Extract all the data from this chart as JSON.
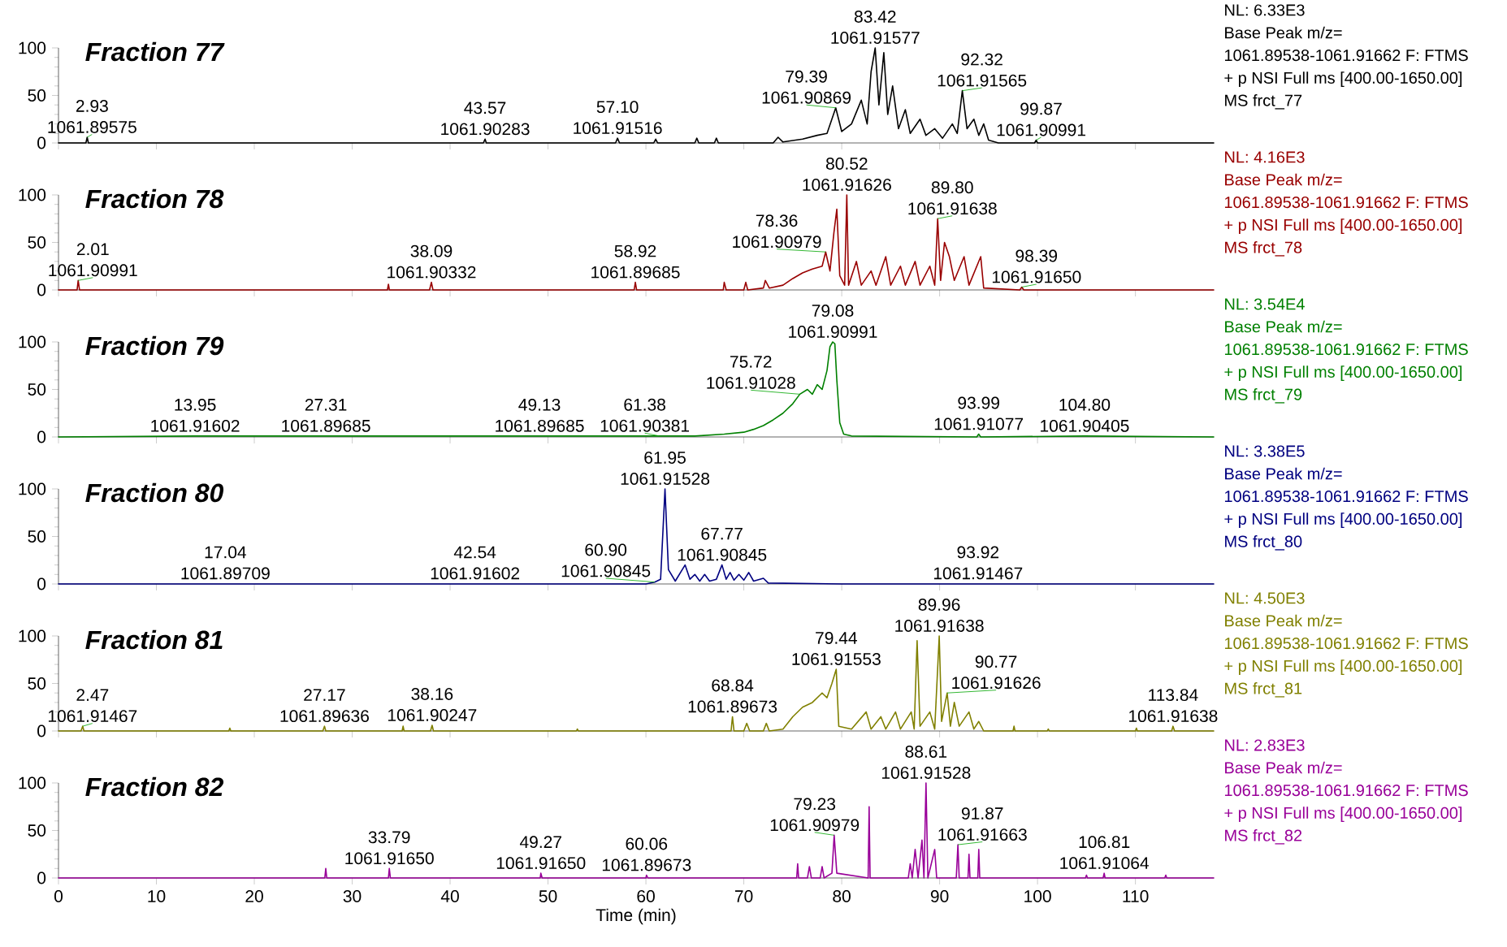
{
  "chart_data": [
    {
      "type": "line",
      "title": "Fraction 77",
      "color": "#000000",
      "xlim": [
        0,
        118
      ],
      "xticks": [
        0,
        10,
        20,
        30,
        40,
        50,
        60,
        70,
        80,
        90,
        100,
        110
      ],
      "ylim": [
        0,
        100
      ],
      "yticks": [
        0,
        50,
        100
      ],
      "tick_labels": "y",
      "x": [
        0,
        2.8,
        2.93,
        3.05,
        43.4,
        43.57,
        43.7,
        56.9,
        57.1,
        57.3,
        60.8,
        61,
        61.2,
        65,
        65.2,
        65.4,
        67,
        67.2,
        67.4,
        73,
        73.5,
        74,
        76,
        77.5,
        78.5,
        79.39,
        80,
        81,
        82,
        82.6,
        83,
        83.42,
        83.8,
        84.3,
        84.7,
        85.2,
        85.8,
        86.5,
        87,
        88,
        88.6,
        89.5,
        90.3,
        91.3,
        91.8,
        92.32,
        92.8,
        93.5,
        94,
        94.5,
        95,
        96,
        99.7,
        99.87,
        100,
        118
      ],
      "values": [
        0,
        0,
        6,
        0,
        0,
        4,
        0,
        0,
        5,
        0,
        0,
        4,
        0,
        0,
        5,
        0,
        0,
        5,
        0,
        0,
        6,
        1,
        4,
        8,
        10,
        37,
        12,
        20,
        45,
        20,
        75,
        100,
        40,
        95,
        30,
        60,
        15,
        35,
        10,
        25,
        8,
        15,
        5,
        20,
        10,
        55,
        15,
        25,
        8,
        20,
        3,
        0,
        0,
        3,
        0,
        0
      ],
      "annotations": [
        {
          "text": "2.93",
          "x": 2.93,
          "y": 6
        },
        {
          "text": "1061.89575",
          "x": 2.93,
          "y": 6
        },
        {
          "text": "43.57",
          "x": 43.57,
          "y": 4
        },
        {
          "text": "1061.90283",
          "x": 43.57,
          "y": 4
        },
        {
          "text": "57.10",
          "x": 57.1,
          "y": 5
        },
        {
          "text": "1061.91516",
          "x": 57.1,
          "y": 5
        },
        {
          "text": "79.39",
          "x": 79.39,
          "y": 37
        },
        {
          "text": "1061.90869",
          "x": 79.39,
          "y": 37
        },
        {
          "text": "83.42",
          "x": 83.42,
          "y": 100
        },
        {
          "text": "1061.91577",
          "x": 83.42,
          "y": 100
        },
        {
          "text": "92.32",
          "x": 92.32,
          "y": 55
        },
        {
          "text": "1061.91565",
          "x": 92.32,
          "y": 55
        },
        {
          "text": "99.87",
          "x": 99.87,
          "y": 3
        },
        {
          "text": "1061.90991",
          "x": 99.87,
          "y": 3
        },
        "NL: 6.33E3",
        "Base Peak m/z=",
        "1061.89538-1061.91662 F: FTMS",
        "+ p NSI Full ms [400.00-1650.00]",
        "MS frct_77"
      ]
    },
    {
      "type": "line",
      "title": "Fraction 78",
      "color": "#990000",
      "xlim": [
        0,
        118
      ],
      "xticks": [
        0,
        10,
        20,
        30,
        40,
        50,
        60,
        70,
        80,
        90,
        100,
        110
      ],
      "ylim": [
        0,
        100
      ],
      "yticks": [
        0,
        50,
        100
      ],
      "tick_labels": "y",
      "x": [
        0,
        1.9,
        2.01,
        2.15,
        33.6,
        33.7,
        33.8,
        37.9,
        38.09,
        38.25,
        58.8,
        58.92,
        59.05,
        67.9,
        68,
        68.2,
        70,
        70.2,
        70.4,
        72,
        72.2,
        72.6,
        74,
        75,
        76,
        77,
        78,
        78.36,
        78.8,
        79.2,
        79.5,
        79.8,
        80.3,
        80.52,
        80.7,
        81.5,
        82,
        83,
        83.5,
        84.5,
        85,
        86,
        86.5,
        87.5,
        88,
        89,
        89.5,
        89.8,
        90.1,
        90.5,
        91,
        91.5,
        92.5,
        93,
        94.2,
        94.5,
        98.2,
        98.39,
        98.6,
        118
      ],
      "values": [
        0,
        0,
        10,
        0,
        0,
        6,
        0,
        0,
        8,
        0,
        0,
        8,
        0,
        0,
        8,
        0,
        0,
        8,
        0,
        2,
        10,
        2,
        5,
        12,
        18,
        22,
        25,
        40,
        20,
        60,
        85,
        15,
        5,
        100,
        5,
        30,
        5,
        20,
        5,
        35,
        5,
        25,
        5,
        30,
        5,
        25,
        5,
        75,
        10,
        50,
        35,
        10,
        35,
        5,
        35,
        2,
        0,
        3,
        0,
        0
      ],
      "annotations": [
        {
          "text": "2.01",
          "x": 2.01,
          "y": 10
        },
        {
          "text": "1061.90991",
          "x": 2.01,
          "y": 10
        },
        {
          "text": "38.09",
          "x": 38.09,
          "y": 8
        },
        {
          "text": "1061.90332",
          "x": 38.09,
          "y": 8
        },
        {
          "text": "58.92",
          "x": 58.92,
          "y": 8
        },
        {
          "text": "1061.89685",
          "x": 58.92,
          "y": 8
        },
        {
          "text": "78.36",
          "x": 78.36,
          "y": 40
        },
        {
          "text": "1061.90979",
          "x": 78.36,
          "y": 40
        },
        {
          "text": "80.52",
          "x": 80.52,
          "y": 100
        },
        {
          "text": "1061.91626",
          "x": 80.52,
          "y": 100
        },
        {
          "text": "89.80",
          "x": 89.8,
          "y": 75
        },
        {
          "text": "1061.91638",
          "x": 89.8,
          "y": 75
        },
        {
          "text": "98.39",
          "x": 98.39,
          "y": 3
        },
        {
          "text": "1061.91650",
          "x": 98.39,
          "y": 3
        },
        "NL: 4.16E3",
        "Base Peak m/z=",
        "1061.89538-1061.91662 F: FTMS",
        "+ p NSI Full ms [400.00-1650.00]",
        "MS frct_78"
      ]
    },
    {
      "type": "line",
      "title": "Fraction 79",
      "color": "#008000",
      "xlim": [
        0,
        118
      ],
      "xticks": [
        0,
        10,
        20,
        30,
        40,
        50,
        60,
        70,
        80,
        90,
        100,
        110
      ],
      "ylim": [
        0,
        100
      ],
      "yticks": [
        0,
        50,
        100
      ],
      "tick_labels": "y",
      "x": [
        0,
        13.95,
        27.31,
        49.13,
        61.38,
        65,
        68,
        70,
        71,
        72,
        73,
        74,
        75,
        75.72,
        76.5,
        77,
        77.5,
        78,
        78.5,
        78.8,
        79.08,
        79.3,
        79.5,
        79.8,
        80.2,
        81,
        93.8,
        93.99,
        94.2,
        104.8,
        118
      ],
      "values": [
        0,
        1,
        1,
        1,
        1,
        1,
        3,
        5,
        8,
        12,
        18,
        25,
        35,
        45,
        50,
        45,
        55,
        50,
        70,
        95,
        100,
        98,
        60,
        15,
        3,
        1,
        0,
        3,
        0,
        1,
        0
      ],
      "annotations": [
        {
          "text": "13.95",
          "x": 13.95,
          "y": 1
        },
        {
          "text": "1061.91602",
          "x": 13.95,
          "y": 1
        },
        {
          "text": "27.31",
          "x": 27.31,
          "y": 1
        },
        {
          "text": "1061.89685",
          "x": 27.31,
          "y": 1
        },
        {
          "text": "49.13",
          "x": 49.13,
          "y": 1
        },
        {
          "text": "1061.89685",
          "x": 49.13,
          "y": 1
        },
        {
          "text": "61.38",
          "x": 61.38,
          "y": 1
        },
        {
          "text": "1061.90381",
          "x": 61.38,
          "y": 1
        },
        {
          "text": "75.72",
          "x": 75.72,
          "y": 45
        },
        {
          "text": "1061.91028",
          "x": 75.72,
          "y": 45
        },
        {
          "text": "79.08",
          "x": 79.08,
          "y": 100
        },
        {
          "text": "1061.90991",
          "x": 79.08,
          "y": 100
        },
        {
          "text": "93.99",
          "x": 93.99,
          "y": 3
        },
        {
          "text": "1061.91077",
          "x": 93.99,
          "y": 3
        },
        {
          "text": "104.80",
          "x": 104.8,
          "y": 1
        },
        {
          "text": "1061.90405",
          "x": 104.8,
          "y": 1
        },
        "NL: 3.54E4",
        "Base Peak m/z=",
        "1061.89538-1061.91662 F: FTMS",
        "+ p NSI Full ms [400.00-1650.00]",
        "MS frct_79"
      ]
    },
    {
      "type": "line",
      "title": "Fraction 80",
      "color": "#000080",
      "xlim": [
        0,
        118
      ],
      "xticks": [
        0,
        10,
        20,
        30,
        40,
        50,
        60,
        70,
        80,
        90,
        100,
        110
      ],
      "ylim": [
        0,
        100
      ],
      "yticks": [
        0,
        50,
        100
      ],
      "tick_labels": "y",
      "x": [
        0,
        17.04,
        42.54,
        60,
        60.9,
        61.5,
        61.95,
        62.3,
        63,
        64,
        64.5,
        65,
        65.5,
        66,
        66.5,
        67.2,
        67.77,
        68.2,
        68.6,
        69,
        69.5,
        70,
        70.5,
        71,
        72,
        72.5,
        80,
        93.92,
        118
      ],
      "values": [
        0,
        0,
        0,
        0,
        2,
        5,
        100,
        15,
        3,
        20,
        5,
        10,
        3,
        10,
        3,
        5,
        20,
        5,
        12,
        4,
        10,
        4,
        12,
        3,
        6,
        1,
        0,
        0,
        0
      ],
      "annotations": [
        {
          "text": "17.04",
          "x": 17.04,
          "y": 0.5
        },
        {
          "text": "1061.89709",
          "x": 17.04,
          "y": 0.5
        },
        {
          "text": "42.54",
          "x": 42.54,
          "y": 0.5
        },
        {
          "text": "1061.91602",
          "x": 42.54,
          "y": 0.5
        },
        {
          "text": "60.90",
          "x": 60.9,
          "y": 2
        },
        {
          "text": "1061.90845",
          "x": 60.9,
          "y": 2
        },
        {
          "text": "61.95",
          "x": 61.95,
          "y": 100
        },
        {
          "text": "1061.91528",
          "x": 61.95,
          "y": 100
        },
        {
          "text": "67.77",
          "x": 67.77,
          "y": 20
        },
        {
          "text": "1061.90845",
          "x": 67.77,
          "y": 20
        },
        {
          "text": "93.92",
          "x": 93.92,
          "y": 0.5
        },
        {
          "text": "1061.91467",
          "x": 93.92,
          "y": 0.5
        },
        "NL: 3.38E5",
        "Base Peak m/z=",
        "1061.89538-1061.91662 F: FTMS",
        "+ p NSI Full ms [400.00-1650.00]",
        "MS frct_80"
      ]
    },
    {
      "type": "line",
      "title": "Fraction 81",
      "color": "#808000",
      "xlim": [
        0,
        118
      ],
      "xticks": [
        0,
        10,
        20,
        30,
        40,
        50,
        60,
        70,
        80,
        90,
        100,
        110
      ],
      "ylim": [
        0,
        100
      ],
      "yticks": [
        0,
        50,
        100
      ],
      "tick_labels": "y",
      "x": [
        0,
        2.3,
        2.47,
        2.6,
        17.4,
        17.5,
        17.6,
        27,
        27.17,
        27.3,
        35.1,
        35.2,
        35.3,
        38,
        38.16,
        38.3,
        52.9,
        53,
        53.1,
        68.7,
        68.84,
        69,
        70,
        70.3,
        70.6,
        72,
        72.3,
        72.6,
        74,
        75,
        76,
        77,
        78,
        78.5,
        79,
        79.44,
        79.7,
        81,
        82.5,
        83,
        84,
        84.5,
        85.5,
        86,
        87.1,
        87.4,
        87.7,
        88,
        89,
        89.5,
        89.96,
        90.2,
        90.77,
        91.1,
        91.5,
        92,
        93,
        93.5,
        94,
        94.5,
        97.5,
        97.6,
        97.7,
        101,
        101.1,
        101.2,
        110,
        110.1,
        110.2,
        113.7,
        113.84,
        114,
        118
      ],
      "values": [
        0,
        0,
        5,
        0,
        0,
        3,
        0,
        0,
        5,
        0,
        0,
        5,
        0,
        0,
        6,
        0,
        0,
        2,
        0,
        0,
        15,
        0,
        0,
        8,
        0,
        0,
        8,
        0,
        2,
        15,
        25,
        30,
        40,
        35,
        50,
        65,
        5,
        2,
        20,
        2,
        15,
        2,
        20,
        2,
        20,
        2,
        95,
        5,
        20,
        2,
        100,
        10,
        40,
        5,
        30,
        5,
        20,
        2,
        10,
        0,
        0,
        5,
        0,
        0,
        2,
        0,
        0,
        3,
        0,
        0,
        5,
        0,
        0
      ],
      "annotations": [
        {
          "text": "2.47",
          "x": 2.47,
          "y": 5
        },
        {
          "text": "1061.91467",
          "x": 2.47,
          "y": 5
        },
        {
          "text": "27.17",
          "x": 27.17,
          "y": 5
        },
        {
          "text": "1061.89636",
          "x": 27.17,
          "y": 5
        },
        {
          "text": "38.16",
          "x": 38.16,
          "y": 6
        },
        {
          "text": "1061.90247",
          "x": 38.16,
          "y": 6
        },
        {
          "text": "68.84",
          "x": 68.84,
          "y": 15
        },
        {
          "text": "1061.89673",
          "x": 68.84,
          "y": 15
        },
        {
          "text": "79.44",
          "x": 79.44,
          "y": 65
        },
        {
          "text": "1061.91553",
          "x": 79.44,
          "y": 65
        },
        {
          "text": "89.96",
          "x": 89.96,
          "y": 100
        },
        {
          "text": "1061.91638",
          "x": 89.96,
          "y": 100
        },
        {
          "text": "90.77",
          "x": 90.77,
          "y": 40
        },
        {
          "text": "1061.91626",
          "x": 90.77,
          "y": 40
        },
        {
          "text": "113.84",
          "x": 113.84,
          "y": 5
        },
        {
          "text": "1061.91638",
          "x": 113.84,
          "y": 5
        },
        "NL: 4.50E3",
        "Base Peak m/z=",
        "1061.89538-1061.91662 F: FTMS",
        "+ p NSI Full ms [400.00-1650.00]",
        "MS frct_81"
      ]
    },
    {
      "type": "line",
      "title": "Fraction 82",
      "color": "#990099",
      "xlabel": "Time (min)",
      "xlim": [
        0,
        118
      ],
      "xticks": [
        0,
        10,
        20,
        30,
        40,
        50,
        60,
        70,
        80,
        90,
        100,
        110
      ],
      "ylim": [
        0,
        100
      ],
      "yticks": [
        0,
        50,
        100
      ],
      "x": [
        0,
        27.2,
        27.3,
        27.4,
        33.7,
        33.79,
        33.9,
        49.2,
        49.27,
        49.4,
        60,
        60.06,
        60.2,
        75.4,
        75.5,
        75.6,
        76.5,
        76.7,
        76.9,
        77.8,
        78,
        78.2,
        79,
        79.23,
        79.5,
        82.7,
        82.8,
        82.9,
        86.8,
        87,
        87.2,
        87.5,
        87.8,
        88.2,
        88.4,
        88.61,
        88.8,
        89.5,
        89.7,
        91.7,
        91.87,
        92,
        92.9,
        93,
        93.1,
        93.9,
        94,
        94.1,
        104.9,
        105,
        105.1,
        106.7,
        106.81,
        106.9,
        113,
        113.1,
        113.2,
        118
      ],
      "values": [
        0,
        0,
        10,
        0,
        0,
        10,
        0,
        0,
        5,
        0,
        0,
        3,
        0,
        0,
        15,
        0,
        0,
        12,
        0,
        0,
        12,
        0,
        5,
        45,
        5,
        0,
        75,
        0,
        0,
        15,
        0,
        30,
        0,
        40,
        0,
        100,
        0,
        30,
        0,
        0,
        35,
        0,
        0,
        25,
        0,
        0,
        30,
        0,
        0,
        3,
        0,
        0,
        5,
        0,
        0,
        3,
        0,
        0
      ],
      "annotations": [
        {
          "text": "33.79",
          "x": 33.79,
          "y": 10
        },
        {
          "text": "1061.91650",
          "x": 33.79,
          "y": 10
        },
        {
          "text": "49.27",
          "x": 49.27,
          "y": 5
        },
        {
          "text": "1061.91650",
          "x": 49.27,
          "y": 5
        },
        {
          "text": "60.06",
          "x": 60.06,
          "y": 3
        },
        {
          "text": "1061.89673",
          "x": 60.06,
          "y": 3
        },
        {
          "text": "79.23",
          "x": 79.23,
          "y": 45
        },
        {
          "text": "1061.90979",
          "x": 79.23,
          "y": 45
        },
        {
          "text": "88.61",
          "x": 88.61,
          "y": 100
        },
        {
          "text": "1061.91528",
          "x": 88.61,
          "y": 100
        },
        {
          "text": "91.87",
          "x": 91.87,
          "y": 35
        },
        {
          "text": "1061.91663",
          "x": 91.87,
          "y": 35
        },
        {
          "text": "106.81",
          "x": 106.81,
          "y": 5
        },
        {
          "text": "1061.91064",
          "x": 106.81,
          "y": 5
        },
        "NL: 2.83E3",
        "Base Peak m/z=",
        "1061.89538-1061.91662 F: FTMS",
        "+ p NSI Full ms [400.00-1650.00]",
        "MS frct_82"
      ]
    }
  ]
}
